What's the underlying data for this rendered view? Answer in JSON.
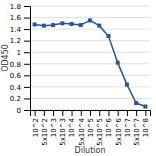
{
  "chart_data": {
    "type": "line",
    "categories": [
      "10^2",
      "5x10^2",
      "10^3",
      "5x10^3",
      "10^4",
      "5x10^4",
      "10^5",
      "5x10^5",
      "10^6",
      "5x10^6",
      "10^7",
      "5x10^7",
      "10^8"
    ],
    "values": [
      1.48,
      1.46,
      1.47,
      1.5,
      1.49,
      1.47,
      1.55,
      1.46,
      1.28,
      0.82,
      0.44,
      0.12,
      0.06
    ],
    "xlabel": "Dilution",
    "ylabel": "OD450",
    "ylim": [
      0,
      1.8
    ],
    "yticks": [
      0,
      0.2,
      0.4,
      0.6,
      0.8,
      1,
      1.2,
      1.4,
      1.6,
      1.8
    ],
    "grid": true,
    "color": "#2855a0",
    "marker": "square"
  }
}
